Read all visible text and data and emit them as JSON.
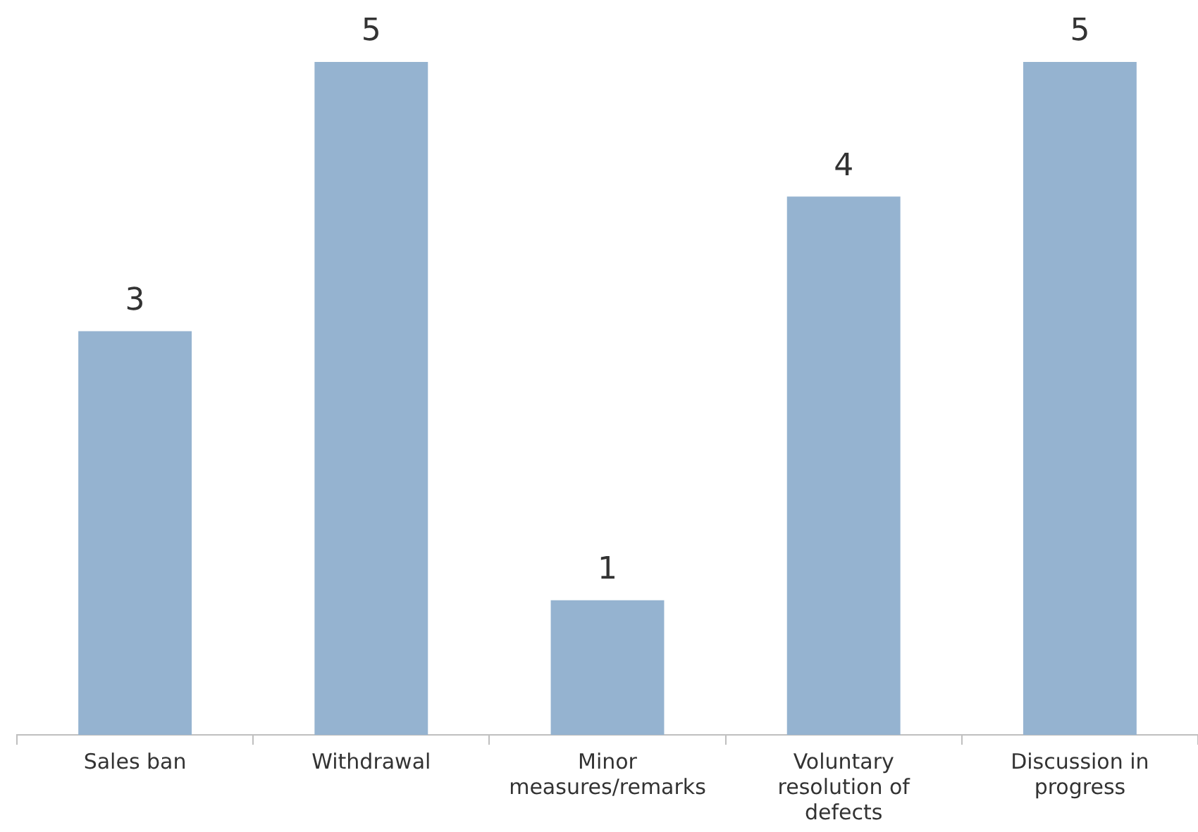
{
  "chart_data": {
    "type": "bar",
    "categories": [
      "Sales ban",
      "Withdrawal",
      "Minor measures/remarks",
      "Voluntary resolution of defects",
      "Discussion in progress"
    ],
    "values": [
      3,
      5,
      1,
      4,
      5
    ],
    "color": "#95b3d0",
    "data_labels": true,
    "grid": false,
    "legend": false
  }
}
